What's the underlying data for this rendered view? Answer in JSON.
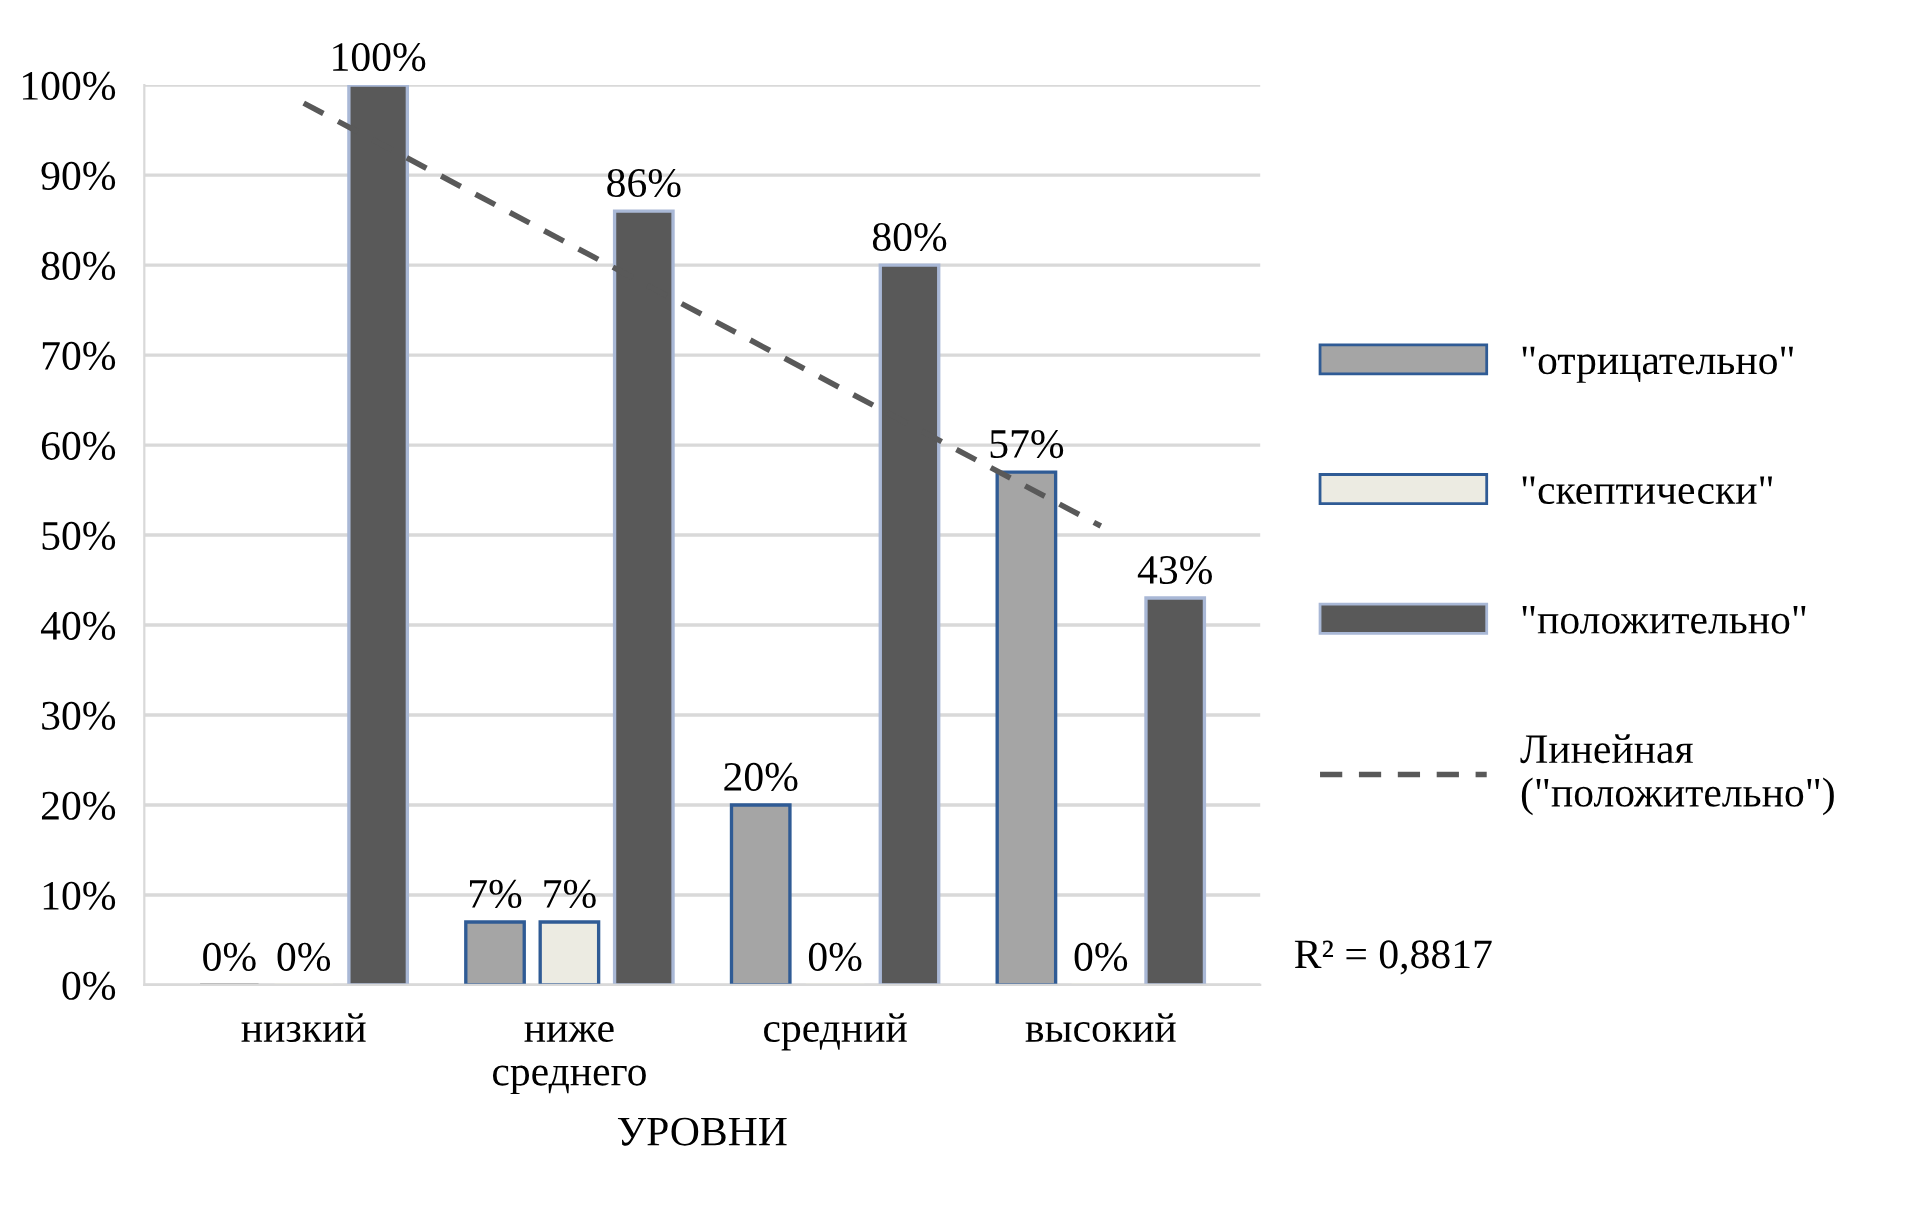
{
  "chart_data": {
    "type": "bar",
    "xlabel": "УРОВНИ",
    "categories": [
      "низкий",
      "ниже\nсреднего",
      "средний",
      "высокий"
    ],
    "series": [
      {
        "name": "\"отрицательно\"",
        "color": "#a5a5a5",
        "values": [
          0,
          7,
          20,
          57
        ],
        "value_labels": [
          "0%",
          "7%",
          "20%",
          "57%"
        ]
      },
      {
        "name": "\"скептически\"",
        "color": "#ecebe2",
        "values": [
          0,
          7,
          0,
          0
        ],
        "value_labels": [
          "0%",
          "7%",
          "0%",
          "0%"
        ]
      },
      {
        "name": "\"положительно\"",
        "color": "#595959",
        "values": [
          100,
          86,
          80,
          43
        ],
        "value_labels": [
          "100%",
          "86%",
          "80%",
          "43%"
        ]
      },
      {
        "name": "Линейная\n(\"положительно\")",
        "type": "line",
        "line_style": "dashed",
        "color": "#595959",
        "x": [
          "низкий",
          "высокий"
        ],
        "values": [
          98,
          51
        ]
      }
    ],
    "ylim": [
      0,
      100
    ],
    "yticks": [
      {
        "value": 0,
        "label": "0%"
      },
      {
        "value": 10,
        "label": "10%"
      },
      {
        "value": 20,
        "label": "20%"
      },
      {
        "value": 30,
        "label": "30%"
      },
      {
        "value": 40,
        "label": "40%"
      },
      {
        "value": 50,
        "label": "50%"
      },
      {
        "value": 60,
        "label": "60%"
      },
      {
        "value": 70,
        "label": "70%"
      },
      {
        "value": 80,
        "label": "80%"
      },
      {
        "value": 90,
        "label": "90%"
      },
      {
        "value": 100,
        "label": "100%"
      }
    ],
    "grid": "y",
    "legend": "right",
    "annotations": [
      "R² = 0,8817"
    ]
  }
}
